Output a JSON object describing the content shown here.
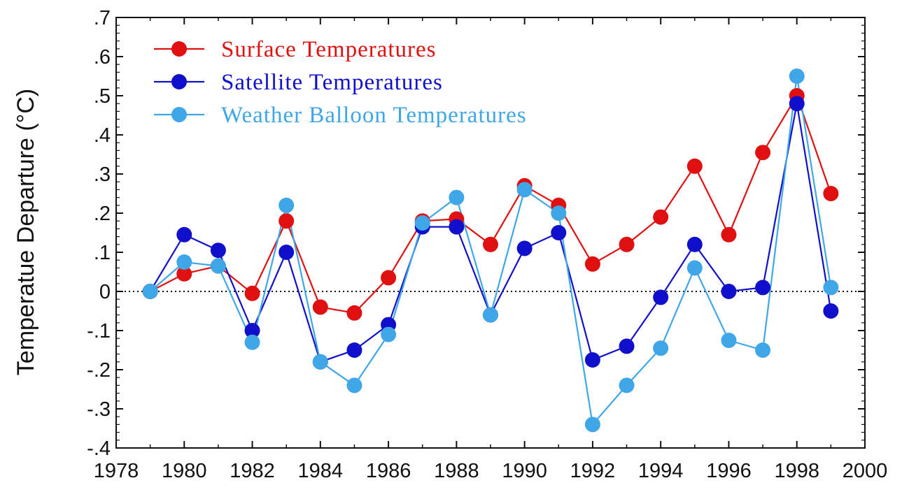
{
  "chart_data": {
    "type": "line",
    "title": "",
    "xlabel": "",
    "ylabel": "Temperatue Departure (°C)",
    "xlim": [
      1978,
      2000
    ],
    "ylim": [
      -0.4,
      0.7
    ],
    "x_ticks": [
      1978,
      1980,
      1982,
      1984,
      1986,
      1988,
      1990,
      1992,
      1994,
      1996,
      1998,
      2000
    ],
    "x_tick_labels": [
      "1978",
      "1980",
      "1982",
      "1984",
      "1986",
      "1988",
      "1990",
      "1992",
      "1994",
      "1996",
      "1998",
      "2000"
    ],
    "y_ticks": [
      -0.4,
      -0.3,
      -0.2,
      -0.1,
      0,
      0.1,
      0.2,
      0.3,
      0.4,
      0.5,
      0.6,
      0.7
    ],
    "y_tick_labels": [
      "-.4",
      "-.3",
      "-.2",
      "-.1",
      "0",
      ".1",
      ".2",
      ".3",
      ".4",
      ".5",
      ".6",
      ".7"
    ],
    "zero_line": "dotted",
    "grid": false,
    "legend_position": "top-left",
    "x": [
      1979,
      1980,
      1981,
      1982,
      1983,
      1984,
      1985,
      1986,
      1987,
      1988,
      1989,
      1990,
      1991,
      1992,
      1993,
      1994,
      1995,
      1996,
      1997,
      1998,
      1999
    ],
    "series": [
      {
        "name": "Surface Temperatures",
        "color": "#e01010",
        "values": [
          0.0,
          0.045,
          0.065,
          -0.005,
          0.18,
          -0.04,
          -0.055,
          0.035,
          0.18,
          0.185,
          0.12,
          0.27,
          0.22,
          0.07,
          0.12,
          0.19,
          0.32,
          0.145,
          0.355,
          0.5,
          0.25
        ]
      },
      {
        "name": "Satellite Temperatures",
        "color": "#1010cc",
        "values": [
          0.0,
          0.145,
          0.105,
          -0.1,
          0.1,
          -0.18,
          -0.15,
          -0.085,
          0.165,
          0.165,
          -0.06,
          0.11,
          0.15,
          -0.175,
          -0.14,
          -0.015,
          0.12,
          0.0,
          0.01,
          0.48,
          -0.05
        ]
      },
      {
        "name": "Weather Balloon Temperatures",
        "color": "#3fa6e8",
        "values": [
          0.0,
          0.075,
          0.065,
          -0.13,
          0.22,
          -0.18,
          -0.24,
          -0.11,
          0.175,
          0.24,
          -0.06,
          0.26,
          0.2,
          -0.34,
          -0.24,
          -0.145,
          0.06,
          -0.125,
          -0.15,
          0.55,
          0.01
        ]
      }
    ]
  }
}
